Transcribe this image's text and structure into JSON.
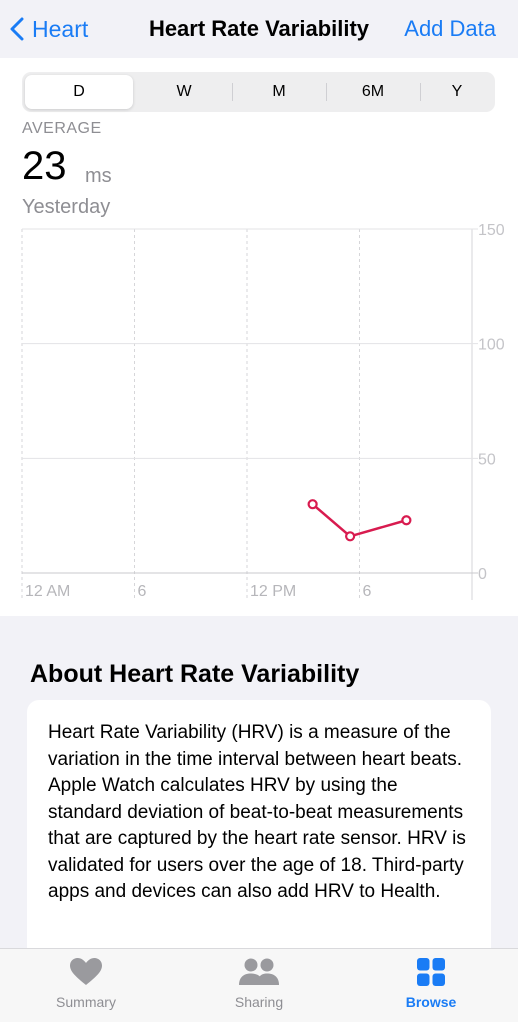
{
  "nav": {
    "back_label": "Heart",
    "title": "Heart Rate Variability",
    "action_label": "Add Data"
  },
  "segments": [
    {
      "label": "D",
      "selected": true
    },
    {
      "label": "W",
      "selected": false
    },
    {
      "label": "M",
      "selected": false
    },
    {
      "label": "6M",
      "selected": false
    },
    {
      "label": "Y",
      "selected": false
    }
  ],
  "summary": {
    "label": "AVERAGE",
    "value": "23",
    "unit": "ms",
    "date": "Yesterday"
  },
  "chart_data": {
    "type": "line",
    "x_ticks": [
      "12 AM",
      "6",
      "12 PM",
      "6"
    ],
    "y_ticks": [
      "150",
      "100",
      "50",
      "0"
    ],
    "ylim": [
      0,
      150
    ],
    "xlim_hours": [
      0,
      24
    ],
    "series": [
      {
        "color": "#d81b4f",
        "x": [
          15.5,
          17.5,
          20.5
        ],
        "y": [
          30,
          16,
          23
        ]
      }
    ]
  },
  "about": {
    "title": "About Heart Rate Variability",
    "text": "Heart Rate Variability (HRV) is a measure of the variation in the time interval between heart beats. Apple Watch calculates HRV by using the standard deviation of beat-to-beat measurements that are captured by the heart rate sensor. HRV is validated for users over the age of 18. Third-party apps and devices can also add HRV to Health."
  },
  "tabs": [
    {
      "label": "Summary",
      "icon": "heart-icon",
      "active": false
    },
    {
      "label": "Sharing",
      "icon": "people-icon",
      "active": false
    },
    {
      "label": "Browse",
      "icon": "grid-icon",
      "active": true
    }
  ],
  "colors": {
    "accent": "#1a7cf5",
    "series": "#d81b4f"
  }
}
